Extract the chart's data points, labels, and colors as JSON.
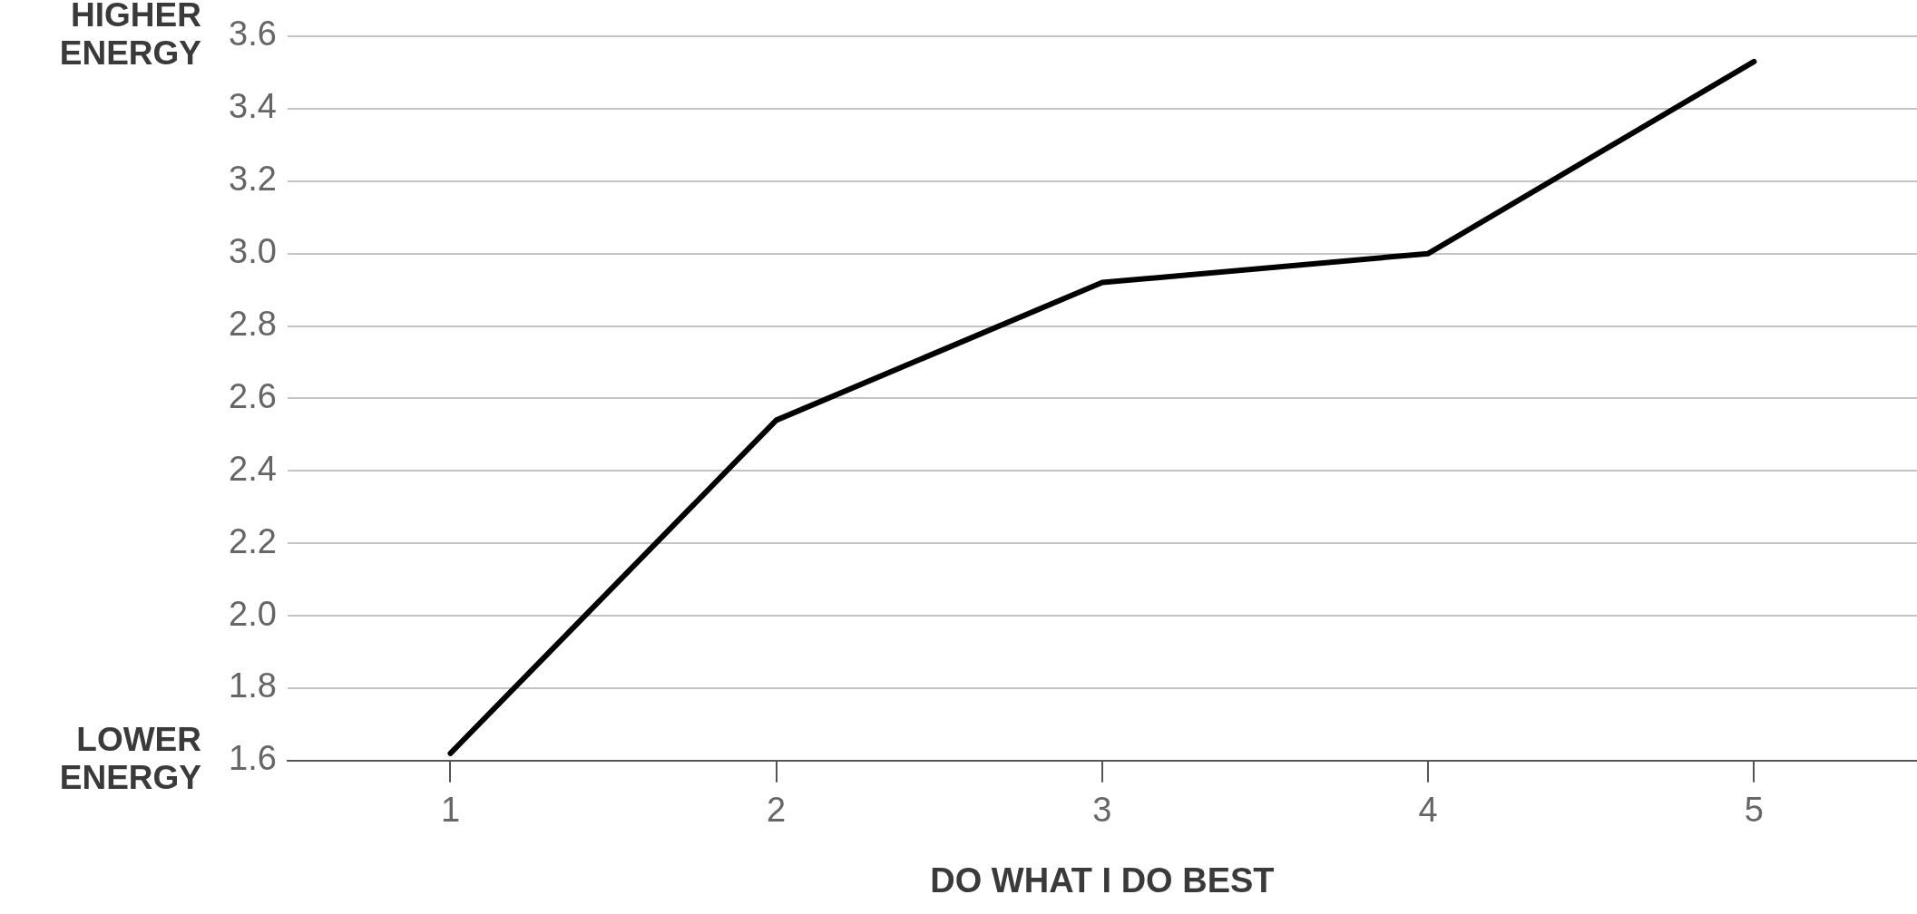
{
  "chart_data": {
    "type": "line",
    "xlabel": "DO WHAT I DO BEST",
    "categories": [
      "1",
      "2",
      "3",
      "4",
      "5"
    ],
    "series": [
      {
        "color": "#000000",
        "values": [
          1.62,
          2.54,
          2.92,
          3.0,
          3.53
        ]
      }
    ],
    "ylim": [
      1.6,
      3.6
    ],
    "yticks": [
      1.6,
      1.8,
      {
        "value": 2,
        "label": "2.0"
      },
      2.2,
      2.4,
      2.6,
      2.8,
      {
        "value": 3,
        "label": "3.0"
      },
      3.2,
      3.4,
      3.6
    ],
    "grid": "y",
    "legend": false,
    "marker": "none",
    "annotations": [
      "HIGHER ENERGY",
      "LOWER ENERGY"
    ]
  }
}
